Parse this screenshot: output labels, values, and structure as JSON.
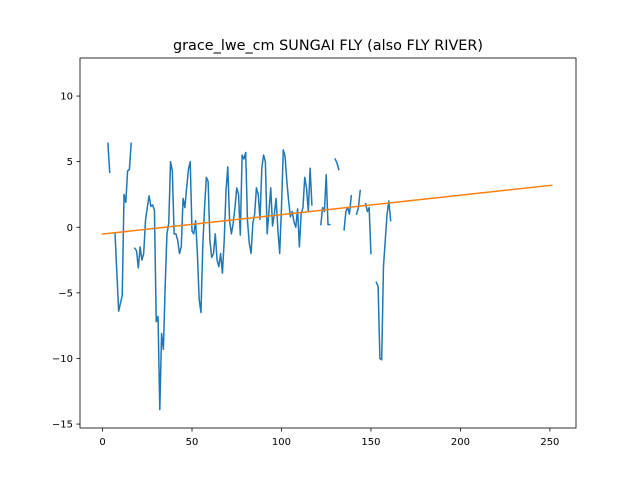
{
  "chart_data": {
    "type": "line",
    "title": "grace_lwe_cm SUNGAI FLY (also FLY RIVER)",
    "xlabel": "",
    "ylabel": "",
    "xlim": [
      -12.6,
      264.6
    ],
    "ylim": [
      -15.3,
      12.9
    ],
    "xticks": [
      0,
      50,
      100,
      150,
      200,
      250
    ],
    "yticks": [
      -15,
      -10,
      -5,
      0,
      5,
      10
    ],
    "grid": false,
    "legend": "none",
    "series": [
      {
        "color": "#1f77b4",
        "segments": [
          [
            [
              3,
              6.4
            ],
            [
              4,
              4.2
            ]
          ],
          [
            [
              7,
              -0.5
            ],
            [
              8,
              -3.5
            ],
            [
              9,
              -6.4
            ],
            [
              10,
              -5.8
            ],
            [
              11,
              -5.2
            ],
            [
              12,
              2.5
            ],
            [
              13,
              1.9
            ],
            [
              14,
              4.3
            ],
            [
              15,
              4.4
            ],
            [
              16,
              6.4
            ]
          ],
          [
            [
              18,
              -1.6
            ],
            [
              19,
              -1.8
            ],
            [
              20,
              -3.1
            ],
            [
              21,
              -1.5
            ],
            [
              22,
              -2.5
            ],
            [
              23,
              -2.0
            ],
            [
              24,
              0.5
            ],
            [
              25,
              1.5
            ],
            [
              26,
              2.4
            ],
            [
              27,
              1.6
            ],
            [
              28,
              1.7
            ],
            [
              29,
              1.3
            ],
            [
              30,
              -7.2
            ],
            [
              31,
              -6.8
            ],
            [
              32,
              -13.9
            ],
            [
              33,
              -8.1
            ],
            [
              34,
              -9.3
            ],
            [
              35,
              -4.5
            ],
            [
              36,
              -0.5
            ],
            [
              37,
              0.3
            ],
            [
              38,
              5.0
            ],
            [
              39,
              4.3
            ],
            [
              40,
              -0.5
            ],
            [
              41,
              -0.5
            ],
            [
              42,
              -1.0
            ],
            [
              43,
              -2.0
            ],
            [
              44,
              -1.5
            ],
            [
              45,
              2.2
            ],
            [
              46,
              1.5
            ],
            [
              47,
              3.0
            ],
            [
              48,
              4.4
            ],
            [
              49,
              5.0
            ],
            [
              50,
              -0.3
            ],
            [
              51,
              -0.5
            ],
            [
              52,
              0.5
            ],
            [
              53,
              -2.0
            ],
            [
              54,
              -5.5
            ],
            [
              55,
              -6.5
            ],
            [
              56,
              -1.5
            ],
            [
              57,
              1.5
            ],
            [
              58,
              3.8
            ],
            [
              59,
              3.5
            ],
            [
              60,
              -1.0
            ],
            [
              61,
              -2.3
            ],
            [
              62,
              -2.0
            ],
            [
              63,
              -0.5
            ],
            [
              64,
              -2.5
            ],
            [
              65,
              -3.0
            ],
            [
              66,
              -2.0
            ],
            [
              67,
              -3.5
            ],
            [
              68,
              -1.0
            ],
            [
              69,
              2.8
            ],
            [
              70,
              4.6
            ],
            [
              71,
              0.5
            ],
            [
              72,
              -0.5
            ],
            [
              73,
              0.3
            ],
            [
              74,
              1.5
            ],
            [
              75,
              3.0
            ],
            [
              76,
              2.5
            ],
            [
              77,
              -0.6
            ],
            [
              78,
              5.5
            ],
            [
              79,
              5.2
            ],
            [
              80,
              5.7
            ],
            [
              81,
              0.5
            ],
            [
              82,
              -1.2
            ],
            [
              83,
              -2.0
            ],
            [
              84,
              0.3
            ],
            [
              85,
              1.0
            ],
            [
              86,
              3.0
            ],
            [
              87,
              2.5
            ],
            [
              88,
              0.6
            ],
            [
              89,
              4.5
            ],
            [
              90,
              5.5
            ],
            [
              91,
              5.0
            ],
            [
              92,
              -0.5
            ],
            [
              93,
              1.2
            ],
            [
              94,
              3.0
            ],
            [
              95,
              0.1
            ],
            [
              96,
              1.0
            ],
            [
              97,
              2.2
            ],
            [
              98,
              -0.2
            ],
            [
              99,
              -2.0
            ],
            [
              100,
              1.5
            ],
            [
              101,
              5.9
            ],
            [
              102,
              5.4
            ],
            [
              103,
              3.5
            ],
            [
              104,
              2.0
            ],
            [
              105,
              0.8
            ],
            [
              106,
              1.2
            ],
            [
              107,
              0.4
            ],
            [
              108,
              0.0
            ],
            [
              109,
              1.4
            ],
            [
              110,
              -1.5
            ],
            [
              111,
              1.0
            ],
            [
              112,
              1.5
            ],
            [
              113,
              3.8
            ],
            [
              114,
              3.0
            ],
            [
              115,
              1.2
            ],
            [
              116,
              4.5
            ],
            [
              117,
              1.7
            ]
          ],
          [
            [
              122,
              0.2
            ],
            [
              123,
              1.5
            ],
            [
              124,
              1.2
            ],
            [
              125,
              4.0
            ],
            [
              126,
              0.2
            ],
            [
              127,
              0.2
            ]
          ],
          [
            [
              130,
              5.2
            ],
            [
              131,
              4.9
            ],
            [
              132,
              4.4
            ]
          ],
          [
            [
              135,
              -0.2
            ],
            [
              136,
              1.2
            ],
            [
              137,
              1.5
            ],
            [
              138,
              1.0
            ],
            [
              139,
              2.4
            ]
          ],
          [
            [
              142,
              1.0
            ],
            [
              143,
              1.5
            ],
            [
              144,
              2.8
            ]
          ],
          [
            [
              147,
              1.8
            ],
            [
              148,
              1.2
            ],
            [
              149,
              1.5
            ],
            [
              150,
              -2.0
            ]
          ],
          [
            [
              153,
              -4.2
            ],
            [
              154,
              -4.5
            ],
            [
              155,
              -10.0
            ],
            [
              156,
              -10.1
            ],
            [
              157,
              -3.0
            ],
            [
              158,
              -1.0
            ],
            [
              159,
              1.0
            ],
            [
              160,
              2.0
            ],
            [
              161,
              0.5
            ]
          ]
        ]
      },
      {
        "color": "#ff7f0e",
        "points": [
          [
            0,
            -0.52
          ],
          [
            251,
            3.2
          ]
        ]
      }
    ]
  }
}
